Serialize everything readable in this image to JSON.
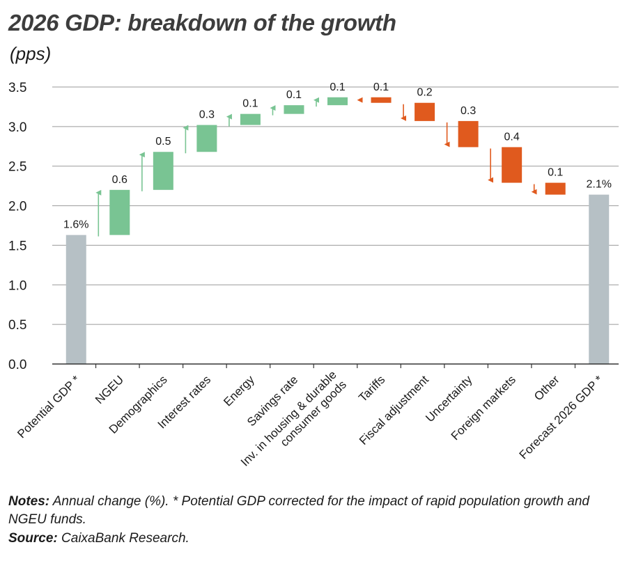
{
  "title": "2026 GDP: breakdown of the growth",
  "subtitle": "(pps)",
  "notes_label": "Notes:",
  "notes_text": "Annual change (%). * Potential GDP corrected for the impact of rapid population growth and NGEU funds.",
  "source_label": "Source:",
  "source_text": "CaixaBank Research.",
  "colors": {
    "positive": "#79c493",
    "negative": "#e05a1e",
    "total": "#b6c0c5",
    "grid": "#9a9a9a",
    "axis": "#333333"
  },
  "chart_data": {
    "type": "waterfall",
    "ylim": [
      0,
      3.5
    ],
    "yticks": [
      "0.0",
      "0.5",
      "1.0",
      "1.5",
      "2.0",
      "2.5",
      "3.0",
      "3.5"
    ],
    "ytick_values": [
      0,
      0.5,
      1.0,
      1.5,
      2.0,
      2.5,
      3.0,
      3.5
    ],
    "grid": true,
    "bars": [
      {
        "label": "Potential GDP *",
        "kind": "total",
        "start": 0,
        "end": 1.63,
        "value_label": "1.6%"
      },
      {
        "label": "NGEU",
        "kind": "up",
        "start": 1.63,
        "end": 2.2,
        "value_label": "0.6"
      },
      {
        "label": "Demographics",
        "kind": "up",
        "start": 2.2,
        "end": 2.68,
        "value_label": "0.5"
      },
      {
        "label": "Interest rates",
        "kind": "up",
        "start": 2.68,
        "end": 3.02,
        "value_label": "0.3"
      },
      {
        "label": "Energy",
        "kind": "up",
        "start": 3.02,
        "end": 3.16,
        "value_label": "0.1"
      },
      {
        "label": "Savings rate",
        "kind": "up",
        "start": 3.16,
        "end": 3.27,
        "value_label": "0.1"
      },
      {
        "label": [
          "Inv. in housing & durable",
          "consumer goods"
        ],
        "kind": "up",
        "start": 3.27,
        "end": 3.37,
        "value_label": "0.1"
      },
      {
        "label": "Tariffs",
        "kind": "down",
        "start": 3.37,
        "end": 3.3,
        "value_label": "0.1"
      },
      {
        "label": "Fiscal adjustment",
        "kind": "down",
        "start": 3.3,
        "end": 3.07,
        "value_label": "0.2"
      },
      {
        "label": "Uncertainty",
        "kind": "down",
        "start": 3.07,
        "end": 2.74,
        "value_label": "0.3"
      },
      {
        "label": "Foreign markets",
        "kind": "down",
        "start": 2.74,
        "end": 2.29,
        "value_label": "0.4"
      },
      {
        "label": "Other",
        "kind": "down",
        "start": 2.29,
        "end": 2.14,
        "value_label": "0.1"
      },
      {
        "label": "Forecast 2026 GDP *",
        "kind": "total",
        "start": 0,
        "end": 2.14,
        "value_label": "2.1%"
      }
    ]
  }
}
